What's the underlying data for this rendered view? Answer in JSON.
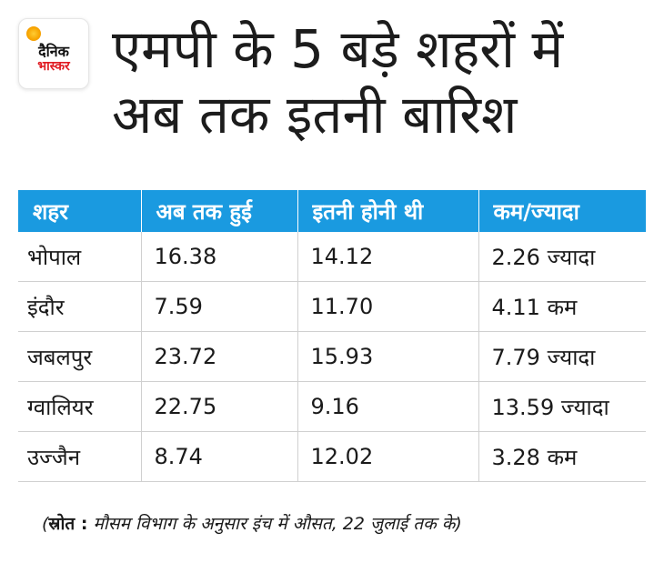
{
  "logo": {
    "line1": "दैनिक",
    "line2": "भास्कर",
    "accent": "#e01b22",
    "sun_color": "#f7a400"
  },
  "title": {
    "line1": "एमपी के 5 बड़े शहरों में",
    "line2": "अब तक इतनी बारिश"
  },
  "source": {
    "open": "(",
    "label": "स्रोत :",
    "text": " मौसम विभाग के अनुसार इंच में औसत, 22 जुलाई तक के)"
  },
  "colors": {
    "header_bg": "#1a9ae0",
    "header_text": "#ffffff",
    "grid": "#d0d0d0"
  },
  "chart_data": {
    "type": "table",
    "columns": [
      "शहर",
      "अब तक हुई",
      "इतनी होनी थी",
      "कम/ज्यादा"
    ],
    "rows": [
      [
        "भोपाल",
        "16.38",
        "14.12",
        "2.26 ज्यादा"
      ],
      [
        "इंदौर",
        "7.59",
        "11.70",
        "4.11 कम"
      ],
      [
        "जबलपुर",
        "23.72",
        "15.93",
        "7.79 ज्यादा"
      ],
      [
        "ग्वालियर",
        "22.75",
        "9.16",
        "13.59 ज्यादा"
      ],
      [
        "उज्जैन",
        "8.74",
        "12.02",
        "3.28 कम"
      ]
    ]
  }
}
